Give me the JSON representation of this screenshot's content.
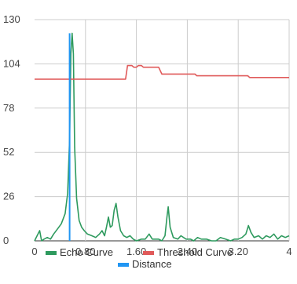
{
  "chart_data": {
    "type": "line",
    "xlim": [
      0,
      4
    ],
    "ylim": [
      0,
      130
    ],
    "x_ticks": [
      0,
      0.8,
      1.6,
      2.4,
      3.2,
      4
    ],
    "x_tick_labels": [
      "0",
      "0.80",
      "1.60",
      "2.40",
      "3.20",
      "4"
    ],
    "y_ticks": [
      0,
      26,
      52,
      78,
      104,
      130
    ],
    "y_tick_labels": [
      "0",
      "26",
      "52",
      "78",
      "104",
      "130"
    ],
    "grid": true,
    "legend_position": "bottom",
    "series": [
      {
        "name": "Echo Curve",
        "color": "#2e9a5e",
        "points": [
          [
            0.0,
            0
          ],
          [
            0.04,
            3
          ],
          [
            0.08,
            6
          ],
          [
            0.11,
            0
          ],
          [
            0.15,
            1
          ],
          [
            0.2,
            2
          ],
          [
            0.25,
            1
          ],
          [
            0.3,
            4
          ],
          [
            0.36,
            7
          ],
          [
            0.42,
            10
          ],
          [
            0.48,
            16
          ],
          [
            0.52,
            28
          ],
          [
            0.55,
            60
          ],
          [
            0.57,
            110
          ],
          [
            0.59,
            122
          ],
          [
            0.61,
            110
          ],
          [
            0.63,
            55
          ],
          [
            0.66,
            25
          ],
          [
            0.7,
            12
          ],
          [
            0.74,
            8
          ],
          [
            0.78,
            6
          ],
          [
            0.83,
            4
          ],
          [
            0.9,
            3
          ],
          [
            0.96,
            2
          ],
          [
            1.02,
            4
          ],
          [
            1.06,
            6
          ],
          [
            1.1,
            3
          ],
          [
            1.13,
            8
          ],
          [
            1.16,
            14
          ],
          [
            1.19,
            8
          ],
          [
            1.22,
            9
          ],
          [
            1.25,
            18
          ],
          [
            1.28,
            22
          ],
          [
            1.31,
            14
          ],
          [
            1.35,
            6
          ],
          [
            1.4,
            3
          ],
          [
            1.45,
            2
          ],
          [
            1.5,
            3
          ],
          [
            1.55,
            1
          ],
          [
            1.6,
            0
          ],
          [
            1.68,
            1
          ],
          [
            1.74,
            1
          ],
          [
            1.8,
            4
          ],
          [
            1.85,
            1
          ],
          [
            1.95,
            1
          ],
          [
            2.0,
            0
          ],
          [
            2.05,
            3
          ],
          [
            2.08,
            14
          ],
          [
            2.1,
            20
          ],
          [
            2.13,
            8
          ],
          [
            2.18,
            2
          ],
          [
            2.25,
            1
          ],
          [
            2.3,
            3
          ],
          [
            2.38,
            1
          ],
          [
            2.45,
            1
          ],
          [
            2.5,
            0
          ],
          [
            2.56,
            2
          ],
          [
            2.62,
            1
          ],
          [
            2.7,
            1
          ],
          [
            2.78,
            0
          ],
          [
            2.85,
            0
          ],
          [
            2.92,
            2
          ],
          [
            3.0,
            1
          ],
          [
            3.08,
            0
          ],
          [
            3.14,
            1
          ],
          [
            3.2,
            1
          ],
          [
            3.26,
            2
          ],
          [
            3.32,
            4
          ],
          [
            3.36,
            9
          ],
          [
            3.4,
            5
          ],
          [
            3.45,
            2
          ],
          [
            3.52,
            3
          ],
          [
            3.58,
            1
          ],
          [
            3.64,
            3
          ],
          [
            3.7,
            2
          ],
          [
            3.76,
            4
          ],
          [
            3.82,
            1
          ],
          [
            3.88,
            3
          ],
          [
            3.94,
            2
          ],
          [
            4.0,
            3
          ]
        ]
      },
      {
        "name": "Threshold Curve",
        "color": "#e05a5a",
        "points": [
          [
            0.0,
            95
          ],
          [
            1.43,
            95
          ],
          [
            1.46,
            103
          ],
          [
            1.53,
            103
          ],
          [
            1.56,
            102
          ],
          [
            1.6,
            102
          ],
          [
            1.63,
            103
          ],
          [
            1.68,
            103
          ],
          [
            1.71,
            102
          ],
          [
            1.95,
            102
          ],
          [
            2.0,
            98
          ],
          [
            2.4,
            98
          ],
          [
            2.52,
            98
          ],
          [
            2.55,
            97
          ],
          [
            3.35,
            97
          ],
          [
            3.38,
            96
          ],
          [
            4.0,
            96
          ]
        ]
      },
      {
        "name": "Distance",
        "color": "#2196f3",
        "points": [
          [
            0.55,
            0
          ],
          [
            0.55,
            122
          ]
        ]
      }
    ]
  }
}
